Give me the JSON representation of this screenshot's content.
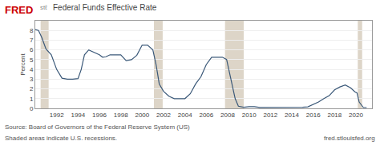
{
  "chart_data": {
    "type": "line",
    "title": "Federal Funds Effective Rate",
    "ylabel": "Percent",
    "x": [
      1990.0,
      1990.3,
      1990.6,
      1991.0,
      1991.5,
      1992.0,
      1992.5,
      1993.0,
      1993.5,
      1994.0,
      1994.3,
      1994.6,
      1995.0,
      1995.5,
      1996.0,
      1996.3,
      1996.6,
      1997.0,
      1997.5,
      1998.0,
      1998.5,
      1999.0,
      1999.5,
      2000.0,
      2000.5,
      2001.0,
      2001.3,
      2001.6,
      2002.0,
      2002.5,
      2003.0,
      2003.5,
      2004.0,
      2004.5,
      2005.0,
      2005.5,
      2006.0,
      2006.5,
      2007.0,
      2007.5,
      2007.9,
      2008.3,
      2008.7,
      2009.0,
      2009.5,
      2010.0,
      2010.5,
      2011.0,
      2011.5,
      2012.0,
      2012.5,
      2013.0,
      2013.5,
      2014.0,
      2014.5,
      2015.0,
      2015.5,
      2016.0,
      2016.5,
      2017.0,
      2017.5,
      2018.0,
      2018.5,
      2019.0,
      2019.5,
      2019.9,
      2020.1,
      2020.3,
      2020.7,
      2021.0
    ],
    "values": [
      8.1,
      8.0,
      7.3,
      6.1,
      5.5,
      4.0,
      3.1,
      3.0,
      3.0,
      3.05,
      4.0,
      5.5,
      6.0,
      5.75,
      5.5,
      5.25,
      5.3,
      5.5,
      5.5,
      5.5,
      4.9,
      5.0,
      5.45,
      6.5,
      6.5,
      6.0,
      4.5,
      2.5,
      1.75,
      1.25,
      1.0,
      1.0,
      1.0,
      1.5,
      2.5,
      3.25,
      4.5,
      5.25,
      5.25,
      5.25,
      5.02,
      3.0,
      1.0,
      0.22,
      0.12,
      0.18,
      0.18,
      0.1,
      0.1,
      0.14,
      0.14,
      0.1,
      0.1,
      0.09,
      0.09,
      0.12,
      0.16,
      0.38,
      0.66,
      1.0,
      1.3,
      1.9,
      2.2,
      2.4,
      2.1,
      1.7,
      1.58,
      0.65,
      0.08,
      0.08
    ],
    "color": "#3a5878",
    "xlim": [
      1990.0,
      2021.5
    ],
    "xticks": [
      1992,
      1994,
      1996,
      1998,
      2000,
      2002,
      2004,
      2006,
      2008,
      2010,
      2012,
      2014,
      2016,
      2018,
      2020
    ],
    "ylim": [
      0,
      9
    ],
    "yticks": [
      0,
      1,
      2,
      3,
      4,
      5,
      6,
      7,
      8
    ],
    "grid": true,
    "recessions": [
      [
        1990.5,
        1991.25
      ],
      [
        2001.1,
        2001.92
      ],
      [
        2007.75,
        2009.5
      ],
      [
        2020.17,
        2020.58
      ]
    ],
    "recession_color": "#ddd5c8",
    "annotations": [
      "FRED",
      "stℓ",
      "Shaded areas indicate U.S. recessions.",
      "Source: Board of Governors of the Federal Reserve System (US)",
      "fred.stlouisfed.org"
    ]
  }
}
